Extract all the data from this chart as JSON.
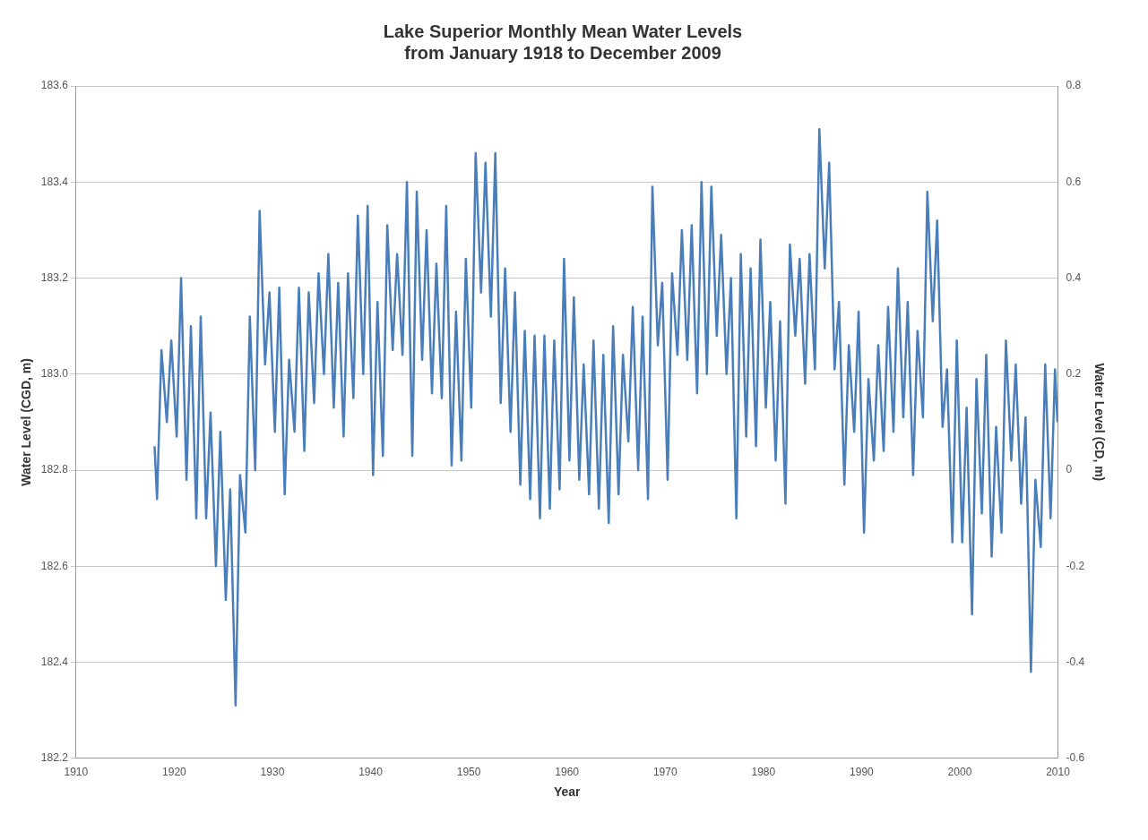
{
  "chart_data": {
    "type": "line",
    "title": "Lake Superior Monthly Mean Water Levels\nfrom January 1918 to December 2009",
    "xlabel": "Year",
    "ylabel": "Water Level (CGD, m)",
    "y2label": "Water Level (CD, m)",
    "xlim": [
      1910,
      2010
    ],
    "xticks": [
      1910,
      1920,
      1930,
      1940,
      1950,
      1960,
      1970,
      1980,
      1990,
      2000,
      2010
    ],
    "ylim": [
      182.2,
      183.6
    ],
    "yticks": [
      182.2,
      182.4,
      182.6,
      182.8,
      {
        "value": 183,
        "label": "183.0"
      },
      183.2,
      183.4,
      183.6
    ],
    "y2lim": [
      -0.6,
      0.8
    ],
    "y2ticks": [
      -0.6,
      -0.4,
      -0.2,
      0,
      0.2,
      0.4,
      0.6,
      0.8
    ],
    "grid": "y",
    "legend": false,
    "marker": "none",
    "line_style": "solid",
    "series": [
      {
        "color": "#4a7ebb",
        "x": [
          1918.0,
          1918.25,
          1918.7,
          1919.25,
          1919.7,
          1920.25,
          1920.7,
          1921.25,
          1921.7,
          1922.25,
          1922.7,
          1923.25,
          1923.7,
          1924.25,
          1924.7,
          1925.25,
          1925.7,
          1926.25,
          1926.7,
          1927.25,
          1927.7,
          1928.25,
          1928.7,
          1929.25,
          1929.7,
          1930.25,
          1930.7,
          1931.25,
          1931.7,
          1932.25,
          1932.7,
          1933.25,
          1933.7,
          1934.25,
          1934.7,
          1935.25,
          1935.7,
          1936.25,
          1936.7,
          1937.25,
          1937.7,
          1938.25,
          1938.7,
          1939.25,
          1939.7,
          1940.25,
          1940.7,
          1941.25,
          1941.7,
          1942.25,
          1942.7,
          1943.25,
          1943.7,
          1944.25,
          1944.7,
          1945.25,
          1945.7,
          1946.25,
          1946.7,
          1947.25,
          1947.7,
          1948.25,
          1948.7,
          1949.25,
          1949.7,
          1950.25,
          1950.7,
          1951.25,
          1951.7,
          1952.25,
          1952.7,
          1953.25,
          1953.7,
          1954.25,
          1954.7,
          1955.25,
          1955.7,
          1956.25,
          1956.7,
          1957.25,
          1957.7,
          1958.25,
          1958.7,
          1959.25,
          1959.7,
          1960.25,
          1960.7,
          1961.25,
          1961.7,
          1962.25,
          1962.7,
          1963.25,
          1963.7,
          1964.25,
          1964.7,
          1965.25,
          1965.7,
          1966.25,
          1966.7,
          1967.25,
          1967.7,
          1968.25,
          1968.7,
          1969.25,
          1969.7,
          1970.25,
          1970.7,
          1971.25,
          1971.7,
          1972.25,
          1972.7,
          1973.25,
          1973.7,
          1974.25,
          1974.7,
          1975.25,
          1975.7,
          1976.25,
          1976.7,
          1977.25,
          1977.7,
          1978.25,
          1978.7,
          1979.25,
          1979.7,
          1980.25,
          1980.7,
          1981.25,
          1981.7,
          1982.25,
          1982.7,
          1983.25,
          1983.7,
          1984.25,
          1984.7,
          1985.25,
          1985.7,
          1986.25,
          1986.7,
          1987.25,
          1987.7,
          1988.25,
          1988.7,
          1989.25,
          1989.7,
          1990.25,
          1990.7,
          1991.25,
          1991.7,
          1992.25,
          1992.7,
          1993.25,
          1993.7,
          1994.25,
          1994.7,
          1995.25,
          1995.7,
          1996.25,
          1996.7,
          1997.25,
          1997.7,
          1998.25,
          1998.7,
          1999.25,
          1999.7,
          2000.25,
          2000.7,
          2001.25,
          2001.7,
          2002.25,
          2002.7,
          2003.25,
          2003.7,
          2004.25,
          2004.7,
          2005.25,
          2005.7,
          2006.25,
          2006.7,
          2007.25,
          2007.7,
          2008.25,
          2008.7,
          2009.25,
          2009.7,
          2009.95
        ],
        "values": [
          182.85,
          182.74,
          183.05,
          182.9,
          183.07,
          182.87,
          183.2,
          182.78,
          183.1,
          182.7,
          183.12,
          182.7,
          182.92,
          182.6,
          182.88,
          182.53,
          182.76,
          182.31,
          182.79,
          182.67,
          183.12,
          182.8,
          183.34,
          183.02,
          183.17,
          182.88,
          183.18,
          182.75,
          183.03,
          182.88,
          183.18,
          182.84,
          183.17,
          182.94,
          183.21,
          183.0,
          183.25,
          182.93,
          183.19,
          182.87,
          183.21,
          182.95,
          183.33,
          183.0,
          183.35,
          182.79,
          183.15,
          182.83,
          183.31,
          183.05,
          183.25,
          183.04,
          183.4,
          182.83,
          183.38,
          183.03,
          183.3,
          182.96,
          183.23,
          182.95,
          183.35,
          182.81,
          183.13,
          182.82,
          183.24,
          182.93,
          183.46,
          183.17,
          183.44,
          183.12,
          183.46,
          182.94,
          183.22,
          182.88,
          183.17,
          182.77,
          183.09,
          182.74,
          183.08,
          182.7,
          183.08,
          182.72,
          183.07,
          182.76,
          183.24,
          182.82,
          183.16,
          182.78,
          183.02,
          182.75,
          183.07,
          182.72,
          183.04,
          182.69,
          183.1,
          182.75,
          183.04,
          182.86,
          183.14,
          182.8,
          183.12,
          182.74,
          183.39,
          183.06,
          183.19,
          182.78,
          183.21,
          183.04,
          183.3,
          183.03,
          183.31,
          182.96,
          183.4,
          183.0,
          183.39,
          183.08,
          183.29,
          183.0,
          183.2,
          182.7,
          183.25,
          182.87,
          183.22,
          182.85,
          183.28,
          182.93,
          183.15,
          182.82,
          183.11,
          182.73,
          183.27,
          183.08,
          183.24,
          182.98,
          183.25,
          183.01,
          183.51,
          183.22,
          183.44,
          183.01,
          183.15,
          182.77,
          183.06,
          182.88,
          183.13,
          182.67,
          182.99,
          182.82,
          183.06,
          182.84,
          183.14,
          182.88,
          183.22,
          182.91,
          183.15,
          182.79,
          183.09,
          182.91,
          183.38,
          183.11,
          183.32,
          182.89,
          183.01,
          182.65,
          183.07,
          182.65,
          182.93,
          182.5,
          182.99,
          182.71,
          183.04,
          182.62,
          182.89,
          182.67,
          183.07,
          182.82,
          183.02,
          182.73,
          182.91,
          182.38,
          182.78,
          182.64,
          183.02,
          182.7,
          183.01,
          182.9
        ]
      }
    ]
  }
}
